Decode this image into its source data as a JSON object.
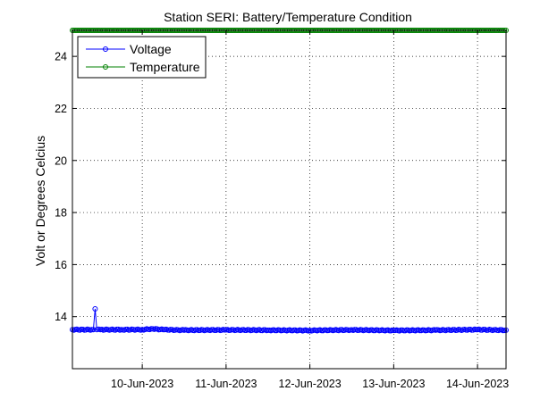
{
  "chart_data": {
    "type": "line",
    "title": "Station SERI: Battery/Temperature Condition",
    "ylabel": "Volt or Degrees Celcius",
    "xlabel": "",
    "x_ticks": [
      "10-Jun-2023",
      "11-Jun-2023",
      "12-Jun-2023",
      "13-Jun-2023",
      "14-Jun-2023"
    ],
    "xlim": [
      "2023-06-09 04:00",
      "2023-06-14 08:10"
    ],
    "ylim": [
      12,
      25
    ],
    "y_ticks": [
      14,
      16,
      18,
      20,
      22,
      24
    ],
    "grid": true,
    "legend_position": "top-left",
    "series": [
      {
        "name": "Voltage",
        "color": "#0000ff",
        "marker": "circle",
        "x": [
          "2023-06-09 04:00",
          "2023-06-09 10:00",
          "2023-06-09 10:30",
          "2023-06-09 11:00",
          "2023-06-09 12:00",
          "2023-06-09 18:00",
          "2023-06-10 00:00",
          "2023-06-10 03:00",
          "2023-06-10 06:00",
          "2023-06-10 12:00",
          "2023-06-11 00:00",
          "2023-06-11 12:00",
          "2023-06-12 00:00",
          "2023-06-12 12:00",
          "2023-06-13 00:00",
          "2023-06-13 12:00",
          "2023-06-14 00:00",
          "2023-06-14 08:10"
        ],
        "y": [
          13.5,
          13.5,
          14.3,
          13.5,
          13.5,
          13.5,
          13.5,
          13.53,
          13.5,
          13.48,
          13.49,
          13.48,
          13.47,
          13.49,
          13.47,
          13.48,
          13.5,
          13.48
        ]
      },
      {
        "name": "Temperature",
        "color": "#008000",
        "marker": "circle",
        "x": [
          "2023-06-09 04:00",
          "2023-06-10 00:00",
          "2023-06-11 00:00",
          "2023-06-12 00:00",
          "2023-06-13 00:00",
          "2023-06-14 00:00",
          "2023-06-14 08:10"
        ],
        "y": [
          25,
          25,
          25,
          25,
          25,
          25,
          25
        ]
      }
    ]
  }
}
